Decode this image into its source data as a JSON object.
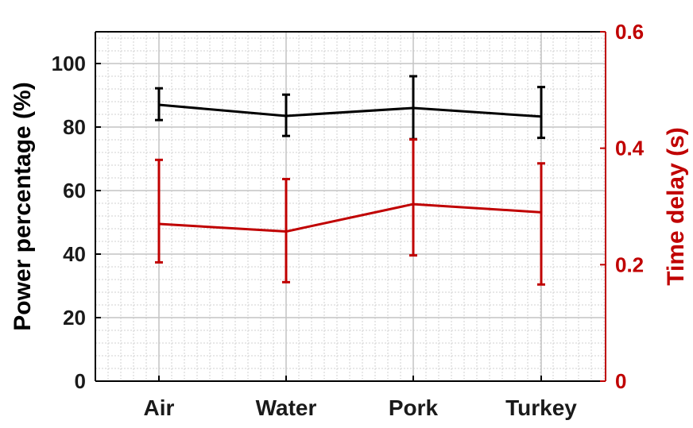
{
  "chart_data": {
    "type": "line",
    "categories": [
      "Air",
      "Water",
      "Pork",
      "Turkey"
    ],
    "y_left": {
      "label": "Power percentage (%)",
      "range": [
        0,
        110
      ],
      "ticks": [
        0,
        20,
        40,
        60,
        80,
        100
      ],
      "tick_labels": [
        "0",
        "20",
        "40",
        "60",
        "80",
        "100"
      ],
      "color": "#000000"
    },
    "y_right": {
      "label": "Time delay (s)",
      "range": [
        0,
        0.6
      ],
      "ticks": [
        0,
        0.2,
        0.4,
        0.6
      ],
      "tick_labels": [
        "0",
        "0.2",
        "0.4",
        "0.6"
      ],
      "color": "#c00000"
    },
    "grid": true,
    "series": [
      {
        "axis": "left",
        "color": "#000000",
        "values": [
          87,
          83.5,
          86,
          83.3
        ],
        "err_low": [
          82.2,
          77.2,
          76.2,
          76.6
        ],
        "err_high": [
          92.2,
          90.2,
          96,
          92.6
        ]
      },
      {
        "axis": "right",
        "color": "#c00000",
        "values": [
          0.27,
          0.257,
          0.304,
          0.29
        ],
        "err_low": [
          0.204,
          0.17,
          0.216,
          0.166
        ],
        "err_high": [
          0.38,
          0.347,
          0.415,
          0.374
        ]
      }
    ]
  }
}
